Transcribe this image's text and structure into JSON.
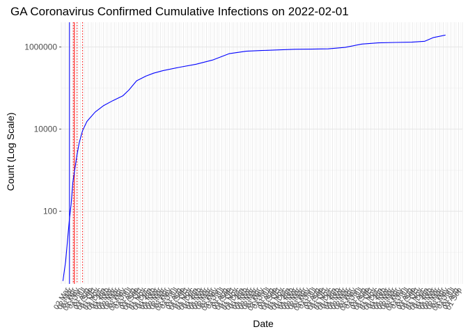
{
  "chart_data": {
    "type": "line",
    "title": "GA Coronavirus Confirmed Cumulative Infections on 2022-02-01",
    "xlabel": "Date",
    "ylabel": "Count (Log Scale)",
    "y_scale": "log10",
    "ylim": [
      1.7,
      4000000
    ],
    "y_ticks": [
      {
        "value": 100,
        "label": "100"
      },
      {
        "value": 10000,
        "label": "10000"
      },
      {
        "value": 1000000,
        "label": "1000000"
      }
    ],
    "x_range": [
      "2020-02-28",
      "2022-03-04"
    ],
    "x_tick_labels": [
      "02 Mar",
      "02 Mar",
      "01 Apr",
      "01 May",
      "01 Jun",
      "01 Jul",
      "01 Aug",
      "01 Sep",
      "01 Oct",
      "01 Nov",
      "01 Dec",
      "01 Jan",
      "01 Feb",
      "01 Mar"
    ],
    "x_tick_label_note": "dense weekly tick labels, overlapping and largely illegible",
    "grid": true,
    "reference_lines": [
      {
        "x": "2020-03-14",
        "color": "#0000ff",
        "style": "solid"
      },
      {
        "x": "2020-03-23",
        "color": "#ff0000",
        "style": "solid"
      },
      {
        "x": "2020-03-21",
        "color": "#ff0000",
        "style": "dotted"
      },
      {
        "x": "2020-03-28",
        "color": "#ff0000",
        "style": "dotted"
      },
      {
        "x": "2020-04-07",
        "color": "#ff0000",
        "style": "dotted"
      }
    ],
    "series": [
      {
        "color": "#0000ff",
        "points": [
          {
            "x": "2020-03-02",
            "y": 2
          },
          {
            "x": "2020-03-07",
            "y": 6
          },
          {
            "x": "2020-03-10",
            "y": 17
          },
          {
            "x": "2020-03-14",
            "y": 66
          },
          {
            "x": "2020-03-17",
            "y": 146
          },
          {
            "x": "2020-03-20",
            "y": 485
          },
          {
            "x": "2020-03-24",
            "y": 1097
          },
          {
            "x": "2020-03-28",
            "y": 2446
          },
          {
            "x": "2020-04-01",
            "y": 4748
          },
          {
            "x": "2020-04-07",
            "y": 9156
          },
          {
            "x": "2020-04-15",
            "y": 15409
          },
          {
            "x": "2020-04-30",
            "y": 26000
          },
          {
            "x": "2020-05-15",
            "y": 37000
          },
          {
            "x": "2020-06-01",
            "y": 49000
          },
          {
            "x": "2020-06-20",
            "y": 65000
          },
          {
            "x": "2020-07-01",
            "y": 90000
          },
          {
            "x": "2020-07-15",
            "y": 150000
          },
          {
            "x": "2020-08-01",
            "y": 195000
          },
          {
            "x": "2020-08-15",
            "y": 230000
          },
          {
            "x": "2020-09-01",
            "y": 265000
          },
          {
            "x": "2020-10-01",
            "y": 320000
          },
          {
            "x": "2020-11-01",
            "y": 380000
          },
          {
            "x": "2020-12-01",
            "y": 480000
          },
          {
            "x": "2021-01-01",
            "y": 690000
          },
          {
            "x": "2021-02-01",
            "y": 790000
          },
          {
            "x": "2021-03-01",
            "y": 820000
          },
          {
            "x": "2021-04-01",
            "y": 850000
          },
          {
            "x": "2021-05-01",
            "y": 880000
          },
          {
            "x": "2021-06-01",
            "y": 890000
          },
          {
            "x": "2021-07-01",
            "y": 900000
          },
          {
            "x": "2021-08-01",
            "y": 980000
          },
          {
            "x": "2021-09-01",
            "y": 1180000
          },
          {
            "x": "2021-10-01",
            "y": 1260000
          },
          {
            "x": "2021-11-01",
            "y": 1290000
          },
          {
            "x": "2021-12-01",
            "y": 1310000
          },
          {
            "x": "2021-12-25",
            "y": 1380000
          },
          {
            "x": "2022-01-10",
            "y": 1700000
          },
          {
            "x": "2022-02-01",
            "y": 1950000
          }
        ]
      }
    ]
  }
}
